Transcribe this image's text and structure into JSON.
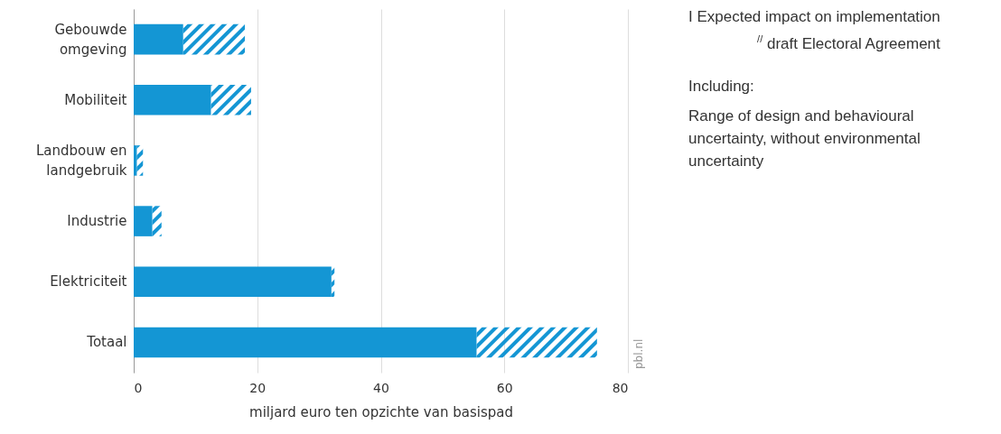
{
  "chart_data": {
    "type": "bar",
    "orientation": "horizontal",
    "stacked": true,
    "categories": [
      "Gebouwde omgeving",
      "Mobiliteit",
      "Landbouw en landgebruik",
      "Industrie",
      "Elektriciteit",
      "Totaal"
    ],
    "series": [
      {
        "color": "#1496d4",
        "values": [
          8,
          12.5,
          0.5,
          3,
          32,
          55.5
        ]
      },
      {
        "color": "#1496d4",
        "values": [
          10,
          6.5,
          1,
          1.5,
          0.5,
          19.5
        ]
      }
    ],
    "xlabel": "miljard euro ten opzichte van basispad",
    "xlim": [
      0,
      80
    ],
    "xticks": [
      0,
      20,
      40,
      60,
      80
    ],
    "grid": "x",
    "annotations": [
      "I Expected impact on implementation",
      "$^{//}$ draft Electoral Agreement",
      "Including:",
      "Range of design and behavioural uncertainty, without environmental uncertainty",
      "pbl.nl"
    ]
  }
}
